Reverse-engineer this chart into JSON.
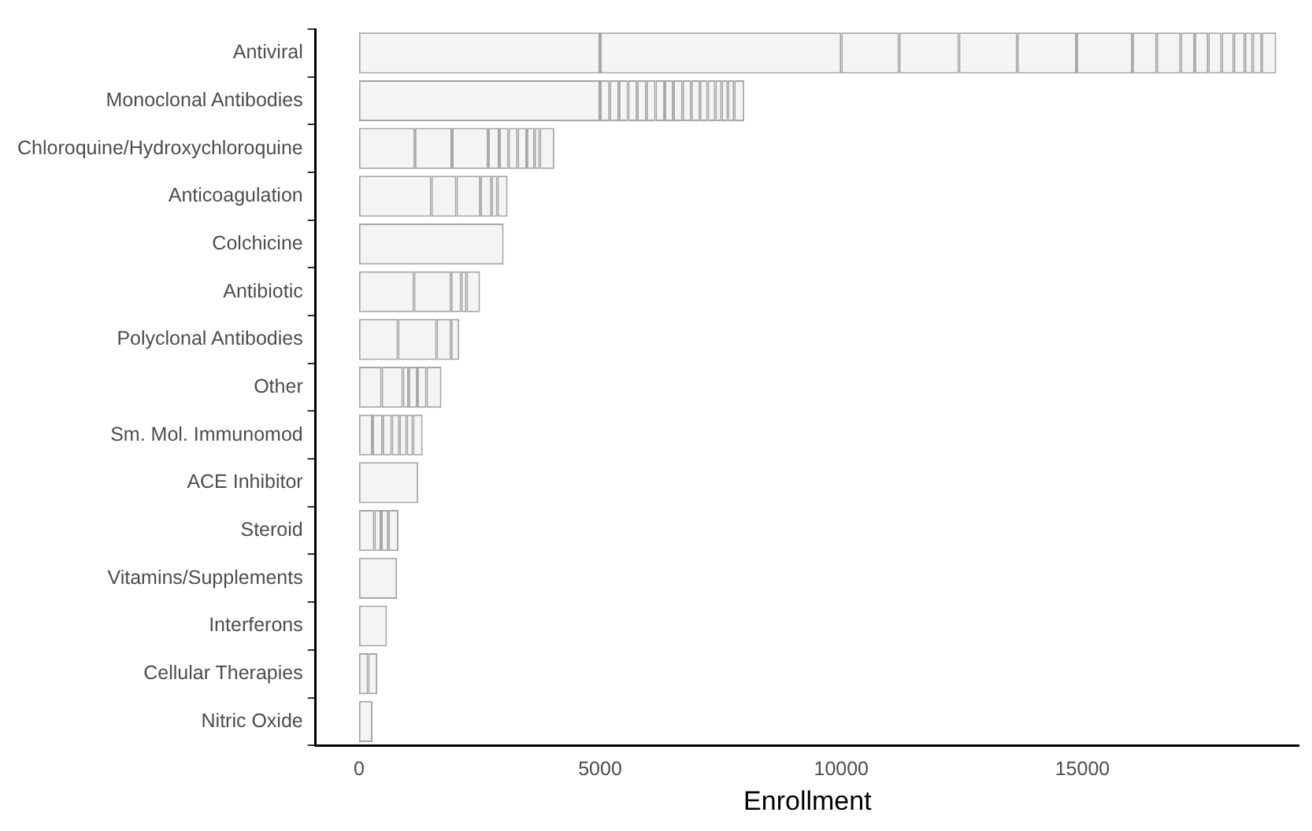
{
  "chart_data": {
    "type": "bar",
    "orientation": "horizontal",
    "stacked": true,
    "xlabel": "Enrollment",
    "legend": false,
    "grid": false,
    "categories": [
      "Antiviral",
      "Monoclonal Antibodies",
      "Chloroquine/Hydroxychloroquine",
      "Anticoagulation",
      "Colchicine",
      "Antibiotic",
      "Polyclonal Antibodies",
      "Other",
      "Sm. Mol. Immunomod",
      "ACE Inhibitor",
      "Steroid",
      "Vitamins/Supplements",
      "Interferons",
      "Cellular Therapies",
      "Nitric Oxide"
    ],
    "xlim": [
      -900,
      19500
    ],
    "xticks": [
      0,
      5000,
      10000,
      15000
    ],
    "series": [
      {
        "color": "#f4f4f4",
        "values": [
          5000,
          5000,
          1160,
          1500,
          3000,
          1140,
          810,
          470,
          280,
          1230,
          320,
          790,
          580,
          190,
          280
        ]
      },
      {
        "color": "#f4f4f4",
        "values": [
          5000,
          200,
          770,
          520,
          null,
          770,
          800,
          440,
          210,
          null,
          140,
          null,
          null,
          190,
          null
        ]
      },
      {
        "color": "#f4f4f4",
        "values": [
          1200,
          190,
          750,
          500,
          null,
          210,
          300,
          120,
          190,
          null,
          150,
          null,
          null,
          null,
          null
        ]
      },
      {
        "color": "#f4f4f4",
        "values": [
          1240,
          190,
          230,
          230,
          null,
          110,
          170,
          180,
          160,
          null,
          210,
          null,
          null,
          null,
          null
        ]
      },
      {
        "color": "#f4f4f4",
        "values": [
          1210,
          190,
          190,
          120,
          null,
          280,
          null,
          190,
          150,
          null,
          null,
          null,
          null,
          null,
          null
        ]
      },
      {
        "color": "#f4f4f4",
        "values": [
          1230,
          190,
          190,
          210,
          null,
          null,
          null,
          310,
          130,
          null,
          null,
          null,
          null,
          null,
          null
        ]
      },
      {
        "color": "#f4f4f4",
        "values": [
          1160,
          190,
          190,
          null,
          null,
          null,
          null,
          null,
          200,
          null,
          null,
          null,
          null,
          null,
          null
        ]
      },
      {
        "color": "#f4f4f4",
        "values": [
          500,
          190,
          160,
          null,
          null,
          null,
          null,
          null,
          null,
          null,
          null,
          null,
          null,
          null,
          null
        ]
      },
      {
        "color": "#f4f4f4",
        "values": [
          500,
          180,
          110,
          null,
          null,
          null,
          null,
          null,
          null,
          null,
          null,
          null,
          null,
          null,
          null
        ]
      },
      {
        "color": "#f4f4f4",
        "values": [
          290,
          190,
          300,
          null,
          null,
          null,
          null,
          null,
          null,
          null,
          null,
          null,
          null,
          null,
          null
        ]
      },
      {
        "color": "#f4f4f4",
        "values": [
          280,
          180,
          null,
          null,
          null,
          null,
          null,
          null,
          null,
          null,
          null,
          null,
          null,
          null,
          null
        ]
      },
      {
        "color": "#f4f4f4",
        "values": [
          280,
          180,
          null,
          null,
          null,
          null,
          null,
          null,
          null,
          null,
          null,
          null,
          null,
          null,
          null
        ]
      },
      {
        "color": "#f4f4f4",
        "values": [
          250,
          160,
          null,
          null,
          null,
          null,
          null,
          null,
          null,
          null,
          null,
          null,
          null,
          null,
          null
        ]
      },
      {
        "color": "#f4f4f4",
        "values": [
          230,
          160,
          null,
          null,
          null,
          null,
          null,
          null,
          null,
          null,
          null,
          null,
          null,
          null,
          null
        ]
      },
      {
        "color": "#f4f4f4",
        "values": [
          160,
          130,
          null,
          null,
          null,
          null,
          null,
          null,
          null,
          null,
          null,
          null,
          null,
          null,
          null
        ]
      },
      {
        "color": "#f4f4f4",
        "values": [
          190,
          130,
          null,
          null,
          null,
          null,
          null,
          null,
          null,
          null,
          null,
          null,
          null,
          null,
          null
        ]
      },
      {
        "color": "#f4f4f4",
        "values": [
          300,
          130,
          null,
          null,
          null,
          null,
          null,
          null,
          null,
          null,
          null,
          null,
          null,
          null,
          null
        ]
      },
      {
        "color": "#f4f4f4",
        "values": [
          null,
          210,
          null,
          null,
          null,
          null,
          null,
          null,
          null,
          null,
          null,
          null,
          null,
          null,
          null
        ]
      }
    ]
  }
}
